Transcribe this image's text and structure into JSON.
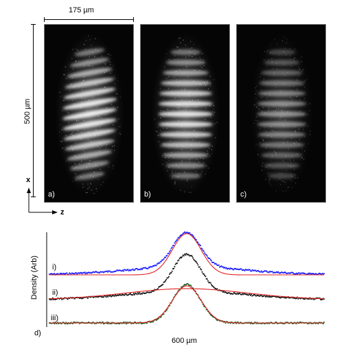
{
  "figure": {
    "top_scale_label": "175 µm",
    "side_scale_label": "500 µm",
    "axis_x_label": "x",
    "axis_z_label": "z",
    "panels": [
      {
        "label": "a)",
        "kind": "tilted-fringes",
        "brightness": 1.0
      },
      {
        "label": "b)",
        "kind": "horizontal-fringes",
        "brightness": 0.95
      },
      {
        "label": "c)",
        "kind": "faint-fringes",
        "brightness": 0.55
      }
    ]
  },
  "plot": {
    "panel_label": "d)",
    "ylabel": "Density (Arb)",
    "xlabel": "600 µm",
    "curve_labels": [
      "i)",
      "ii)",
      "iii)"
    ],
    "colors": {
      "i": "#1a1aff",
      "ii": "#111111",
      "iii": "#1b5e20",
      "fit": "#e02020"
    }
  },
  "chart_data": {
    "type": "line",
    "xlabel": "600 µm",
    "ylabel": "Density (Arb)",
    "x_range": [
      0,
      1
    ],
    "series": [
      {
        "name": "i)",
        "baseline": 0.0,
        "peak_amplitude": 1.0,
        "peak_center": 0.5,
        "peak_width": 0.05,
        "wing_amplitude": 0.18,
        "wing_width": 0.22,
        "fit": "gaussian-peak"
      },
      {
        "name": "ii)",
        "baseline": 0.0,
        "peak_amplitude": 1.0,
        "peak_center": 0.5,
        "peak_width": 0.05,
        "wing_amplitude": 0.18,
        "wing_width": 0.22,
        "fit": "broad-thermal"
      },
      {
        "name": "iii)",
        "baseline": 0.0,
        "peak_amplitude": 1.0,
        "peak_center": 0.5,
        "peak_width": 0.05,
        "wing_amplitude": 0.0,
        "wing_width": 0.22,
        "fit": "gaussian-peak"
      }
    ]
  }
}
